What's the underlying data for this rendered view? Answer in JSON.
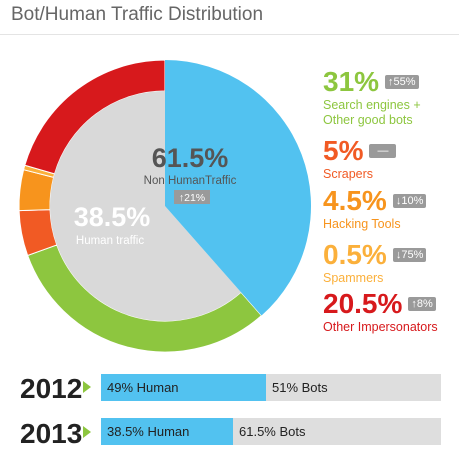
{
  "title": "Bot/Human Traffic Distribution",
  "colors": {
    "search": "#8dc63f",
    "scrapers": "#f15a24",
    "hacking": "#f7941d",
    "spammers": "#fbb03b",
    "impersonators": "#d7191c",
    "human": "#52c2f0",
    "nonhuman": "#d9d9d9"
  },
  "chart_data": {
    "type": "pie",
    "title": "Bot/Human Traffic Distribution",
    "slices": [
      {
        "label": "Search engines + Other good bots",
        "value": 31,
        "pct": "31%",
        "change": "↑55%",
        "color": "#8dc63f"
      },
      {
        "label": "Scrapers",
        "value": 5,
        "pct": "5%",
        "change": "—",
        "color": "#f15a24"
      },
      {
        "label": "Hacking Tools",
        "value": 4.5,
        "pct": "4.5%",
        "change": "↓10%",
        "color": "#f7941d"
      },
      {
        "label": "Spammers",
        "value": 0.5,
        "pct": "0.5%",
        "change": "↓75%",
        "color": "#fbb03b"
      },
      {
        "label": "Other Impersonators",
        "value": 20.5,
        "pct": "20.5%",
        "change": "↑8%",
        "color": "#d7191c"
      },
      {
        "label": "Human traffic",
        "value": 38.5,
        "pct": "38.5%",
        "color": "#52c2f0"
      }
    ],
    "inner": {
      "nonhuman": {
        "value": 61.5,
        "pct": "61.5%",
        "label": "Non HumanTraffic",
        "change": "↑21%"
      },
      "human": {
        "value": 38.5,
        "pct": "38.5%",
        "label": "Human traffic"
      }
    },
    "comparison": [
      {
        "year": "2012",
        "human": 49,
        "bots": 51,
        "human_label": "49% Human",
        "bots_label": "51% Bots"
      },
      {
        "year": "2013",
        "human": 38.5,
        "bots": 61.5,
        "human_label": "38.5% Human",
        "bots_label": "61.5% Bots"
      }
    ]
  },
  "legend": [
    {
      "pct": "31%",
      "change": "↑55%",
      "label1": "Search engines +",
      "label2": "Other good bots",
      "color": "#8dc63f"
    },
    {
      "pct": "5%",
      "change": "—",
      "label1": "Scrapers",
      "label2": "",
      "color": "#f15a24"
    },
    {
      "pct": "4.5%",
      "change": "↓10%",
      "label1": "Hacking Tools",
      "label2": "",
      "color": "#f7941d"
    },
    {
      "pct": "0.5%",
      "change": "↓75%",
      "label1": "Spammers",
      "label2": "",
      "color": "#fbb03b"
    },
    {
      "pct": "20.5%",
      "change": "↑8%",
      "label1": "Other Impersonators",
      "label2": "",
      "color": "#d7191c"
    }
  ]
}
